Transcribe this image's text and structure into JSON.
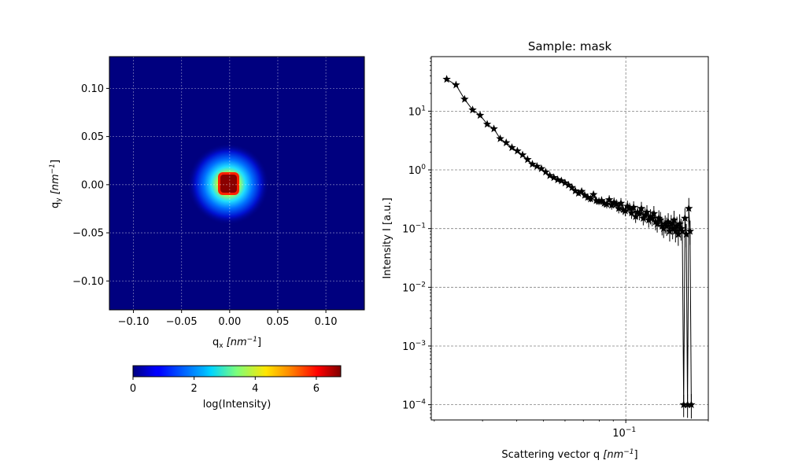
{
  "chart_data": [
    {
      "type": "heatmap",
      "xlabel_main": "q",
      "xlabel_sub": "x",
      "xlabel_unit": "[nm",
      "xlabel_unit_sup": "−1",
      "xlabel_close": "]",
      "ylabel_main": "q",
      "ylabel_sub": "y",
      "ylabel_unit": "[nm",
      "ylabel_unit_sup": "−1",
      "ylabel_close": "]",
      "xlim": [
        -0.125,
        0.14
      ],
      "ylim": [
        -0.13,
        0.133
      ],
      "xticks": [
        -0.1,
        -0.05,
        0.0,
        0.05,
        0.1
      ],
      "xtick_labels": [
        "−0.10",
        "−0.05",
        "0.00",
        "0.05",
        "0.10"
      ],
      "yticks": [
        0.1,
        0.05,
        0.0,
        -0.05,
        -0.1
      ],
      "ytick_labels": [
        "0.10",
        "0.05",
        "0.00",
        "−0.05",
        "−0.10"
      ],
      "grid": true,
      "colormap": "jet",
      "background_color": "#00007f",
      "center": [
        0.0,
        0.0
      ],
      "saturated_core_half_width": 0.01,
      "halo_radius": 0.04,
      "colorbar": {
        "label": "log(Intensity)",
        "range": [
          0,
          6.8
        ],
        "ticks": [
          0,
          2,
          4,
          6
        ],
        "tick_labels": [
          "0",
          "2",
          "4",
          "6"
        ],
        "orientation": "horizontal"
      }
    },
    {
      "type": "line",
      "title": "Sample: mask",
      "xlabel_main": "Scattering vector q ",
      "xlabel_unit": "[nm",
      "xlabel_unit_sup": "−1",
      "xlabel_close": "]",
      "ylabel": "Intensity I [a.u.]",
      "x_scale": "log",
      "y_scale": "log",
      "xlim": [
        0.0195,
        0.2
      ],
      "ylim": [
        5.5e-05,
        85
      ],
      "xticks": [
        0.1
      ],
      "xtick_labels": [
        "10"
      ],
      "xtick_sup": [
        "−1"
      ],
      "yticks": [
        10,
        1,
        0.1,
        0.01,
        0.001,
        0.0001
      ],
      "ytick_base": "10",
      "ytick_sup": [
        "1",
        "0",
        "−1",
        "−2",
        "−3",
        "−4"
      ],
      "grid": true,
      "marker": "star",
      "color": "#000000",
      "x": [
        0.0222,
        0.024,
        0.0258,
        0.0276,
        0.0294,
        0.0312,
        0.033,
        0.0348,
        0.0366,
        0.0384,
        0.0402,
        0.042,
        0.0438,
        0.0456,
        0.0474,
        0.0492,
        0.051,
        0.0528,
        0.0546,
        0.0564,
        0.0582,
        0.06,
        0.0618,
        0.0636,
        0.0654,
        0.0672,
        0.069,
        0.0708,
        0.0726,
        0.0744,
        0.0762,
        0.078,
        0.0798,
        0.0816,
        0.0834,
        0.0852,
        0.087,
        0.0888,
        0.0906,
        0.0924,
        0.0942,
        0.096,
        0.0978,
        0.0996,
        0.1014,
        0.1032,
        0.105,
        0.1068,
        0.1086,
        0.1104,
        0.1122,
        0.114,
        0.1158,
        0.1176,
        0.1194,
        0.1212,
        0.123,
        0.1248,
        0.1266,
        0.1284,
        0.1302,
        0.132,
        0.1338,
        0.1356,
        0.1374,
        0.1392,
        0.141,
        0.1428,
        0.1446,
        0.1464,
        0.1482,
        0.15,
        0.1518,
        0.1536,
        0.1554,
        0.1572,
        0.159,
        0.1608,
        0.1626,
        0.1644,
        0.1662,
        0.168,
        0.1698,
        0.1716,
        0.1734
      ],
      "y": [
        35,
        28,
        16,
        10.5,
        8.5,
        6.0,
        5.0,
        3.4,
        2.9,
        2.4,
        2.1,
        1.8,
        1.5,
        1.25,
        1.15,
        1.05,
        0.92,
        0.8,
        0.74,
        0.68,
        0.65,
        0.6,
        0.55,
        0.5,
        0.44,
        0.4,
        0.43,
        0.37,
        0.34,
        0.32,
        0.38,
        0.3,
        0.29,
        0.3,
        0.27,
        0.26,
        0.31,
        0.25,
        0.28,
        0.26,
        0.22,
        0.27,
        0.21,
        0.2,
        0.24,
        0.22,
        0.185,
        0.23,
        0.16,
        0.19,
        0.18,
        0.22,
        0.15,
        0.17,
        0.19,
        0.14,
        0.16,
        0.15,
        0.18,
        0.13,
        0.12,
        0.15,
        0.14,
        0.11,
        0.1,
        0.12,
        0.11,
        0.13,
        0.09,
        0.12,
        0.1,
        0.14,
        0.09,
        0.11,
        0.08,
        0.12,
        0.1,
        0.09,
        0.0001,
        0.15,
        0.08,
        0.0001,
        0.22,
        0.09,
        0.0001
      ]
    }
  ]
}
